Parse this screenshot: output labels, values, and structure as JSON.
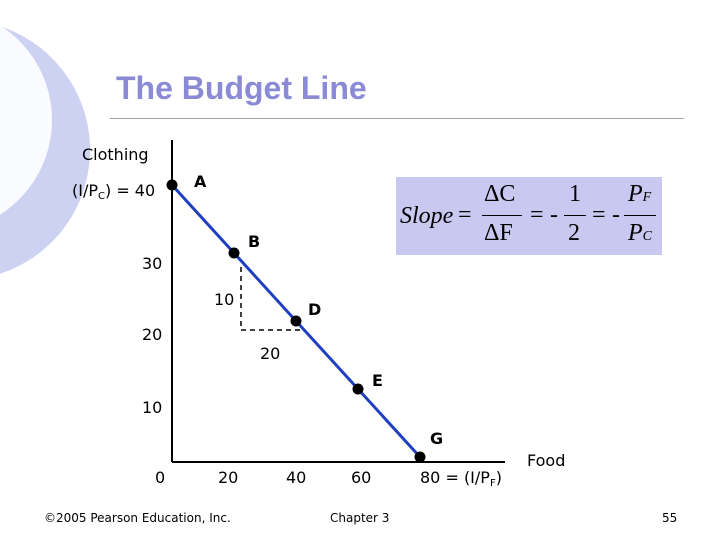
{
  "slide": {
    "title": "The Budget Line",
    "footer_left": "©2005 Pearson Education, Inc.",
    "footer_center": "Chapter 3",
    "footer_right": "55"
  },
  "diagram": {
    "y_axis_label": "Clothing",
    "x_axis_label": "Food",
    "y_intercept_label_pre": "(I/P",
    "y_intercept_label_sub": "C",
    "y_intercept_label_post": ") = 40",
    "x_intercept_label_pre": "80 = (I/P",
    "x_intercept_label_sub": "F",
    "x_intercept_label_post": ")",
    "y_ticks": [
      "30",
      "20",
      "10"
    ],
    "x_ticks": [
      "0",
      "20",
      "40",
      "60"
    ],
    "points": [
      {
        "label": "A",
        "food": 0,
        "clothing": 40
      },
      {
        "label": "B",
        "food": 20,
        "clothing": 30
      },
      {
        "label": "D",
        "food": 40,
        "clothing": 20
      },
      {
        "label": "E",
        "food": 60,
        "clothing": 10
      },
      {
        "label": "G",
        "food": 80,
        "clothing": 0
      }
    ],
    "rise_label": "10",
    "run_label": "20",
    "line_color": "#1f3fbf",
    "point_color": "#000000"
  },
  "formula": {
    "slope_word": "Slope",
    "equals": "=",
    "delta_c": "ΔC",
    "delta_f": "ΔF",
    "minus": "-",
    "one": "1",
    "two": "2",
    "pf_p": "P",
    "pf_sub": "F",
    "pc_p": "P",
    "pc_sub": "C",
    "box_color": "#c8c8f0"
  }
}
